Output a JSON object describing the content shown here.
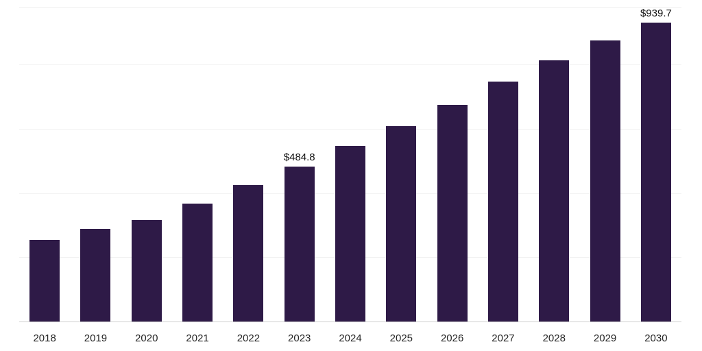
{
  "chart_data": {
    "type": "bar",
    "title": "",
    "xlabel": "",
    "ylabel": "",
    "categories": [
      "2018",
      "2019",
      "2020",
      "2021",
      "2022",
      "2023",
      "2024",
      "2025",
      "2026",
      "2027",
      "2028",
      "2029",
      "2030"
    ],
    "values": [
      257,
      291,
      318,
      370,
      426,
      484.8,
      548,
      611,
      677,
      750,
      815,
      878,
      939.7
    ],
    "data_labels": [
      "",
      "",
      "",
      "",
      "",
      "$484.8",
      "",
      "",
      "",
      "",
      "",
      "",
      "$939.7"
    ],
    "ylim": [
      0,
      980
    ],
    "grid": true,
    "gridline_values": [
      200,
      400,
      600,
      800
    ],
    "legend_position": "none",
    "bar_color": "#2E1A47",
    "background_color": "#FFFFFF",
    "axis_line_color": "#CCCCCC",
    "gridline_color": "#F2F2F2",
    "label_color": "#262626"
  }
}
